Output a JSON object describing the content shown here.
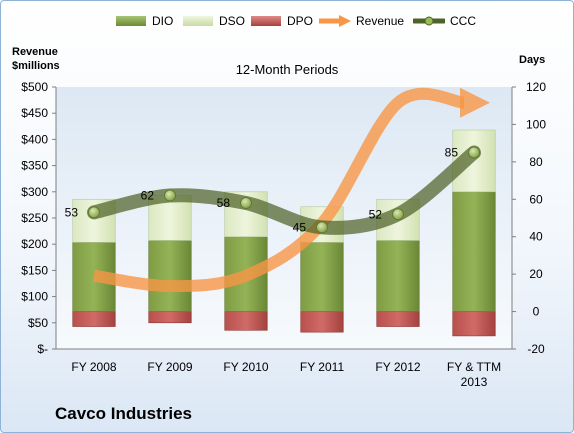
{
  "legend": {
    "dio": "DIO",
    "dso": "DSO",
    "dpo": "DPO",
    "revenue": "Revenue",
    "ccc": "CCC"
  },
  "left_axis_title": [
    "Revenue",
    "$millions"
  ],
  "right_axis_title": "Days",
  "company": "Cavco Industries",
  "chart_data": {
    "type": "bar",
    "title": "12-Month Periods",
    "categories": [
      [
        "FY 2008"
      ],
      [
        "FY 2009"
      ],
      [
        "FY 2010"
      ],
      [
        "FY 2011"
      ],
      [
        "FY 2012"
      ],
      [
        "FY & TTM",
        "2013"
      ]
    ],
    "y_left": {
      "label": "Revenue $millions",
      "range": [
        0,
        500
      ],
      "ticks": [
        0,
        50,
        100,
        150,
        200,
        250,
        300,
        350,
        400,
        450,
        500
      ],
      "tick_labels": [
        "$-",
        "$50",
        "$100",
        "$150",
        "$200",
        "$250",
        "$300",
        "$350",
        "$400",
        "$450",
        "$500"
      ]
    },
    "y_right": {
      "label": "Days",
      "range": [
        -20,
        120
      ],
      "ticks": [
        -20,
        0,
        20,
        40,
        60,
        80,
        100,
        120
      ]
    },
    "series": [
      {
        "name": "DIO",
        "type": "stacked-bar",
        "axis": "right",
        "values": [
          37,
          38,
          40,
          37,
          38,
          64
        ]
      },
      {
        "name": "DSO",
        "type": "stacked-bar",
        "axis": "right",
        "values": [
          23,
          24,
          24,
          19,
          22,
          33
        ]
      },
      {
        "name": "DPO",
        "type": "stacked-bar",
        "axis": "right",
        "values": [
          -8,
          -6,
          -10,
          -11,
          -8,
          -13
        ]
      },
      {
        "name": "Revenue",
        "type": "line",
        "axis": "left",
        "values": [
          140,
          120,
          140,
          240,
          470,
          470
        ]
      },
      {
        "name": "CCC",
        "type": "line",
        "axis": "right",
        "values": [
          53,
          62,
          58,
          45,
          52,
          85
        ],
        "data_labels": [
          "53",
          "62",
          "58",
          "45",
          "52",
          "85"
        ]
      }
    ],
    "colors": {
      "DIO": "#77933c",
      "DSO": "#d7e4bd",
      "DPO": "#c0504d",
      "Revenue": "#f79646",
      "CCC": "#4f6228"
    },
    "grid": false,
    "legend_position": "top"
  }
}
